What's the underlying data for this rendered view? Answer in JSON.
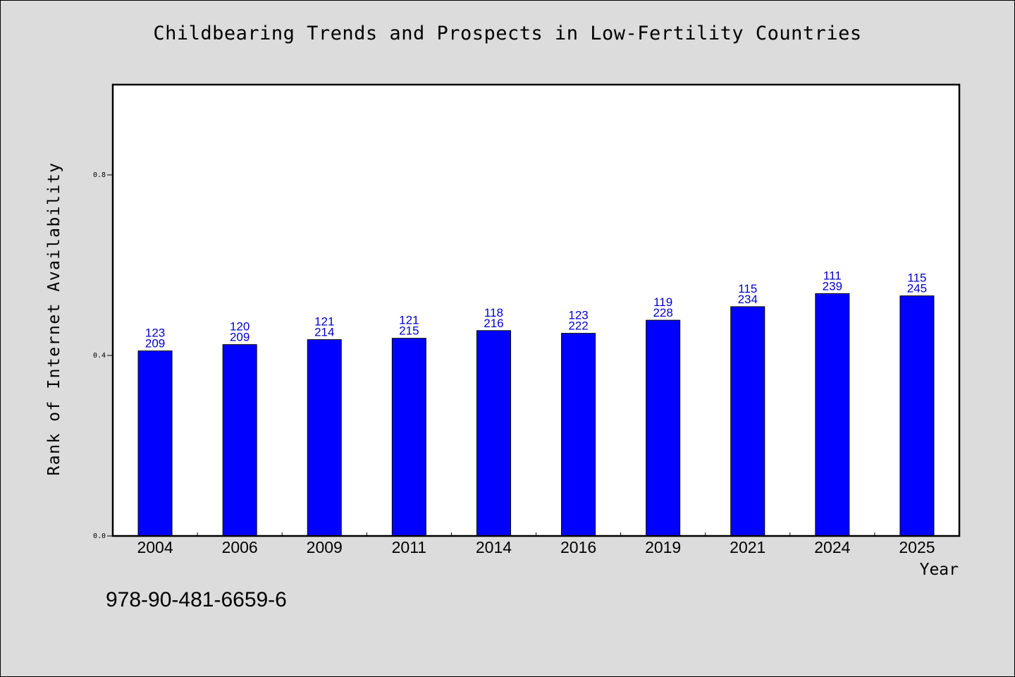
{
  "header": {
    "title": "Childbearing Trends and Prospects in Low-Fertility Countries"
  },
  "footer": {
    "isbn": "978-90-481-6659-6"
  },
  "chart_data": {
    "type": "bar",
    "title": "Childbearing Trends and Prospects in Low-Fertility Countries",
    "xlabel": "Year",
    "ylabel": "Rank of Internet Availability",
    "categories": [
      "2004",
      "2006",
      "2009",
      "2011",
      "2014",
      "2016",
      "2019",
      "2021",
      "2024",
      "2025"
    ],
    "values": [
      0.41,
      0.424,
      0.435,
      0.438,
      0.455,
      0.449,
      0.478,
      0.508,
      0.537,
      0.532
    ],
    "labels_top": [
      "123",
      "120",
      "121",
      "121",
      "118",
      "123",
      "119",
      "115",
      "111",
      "115"
    ],
    "labels_bottom": [
      "209",
      "209",
      "214",
      "215",
      "216",
      "222",
      "228",
      "234",
      "239",
      "245"
    ],
    "ylim": [
      0,
      1.0
    ],
    "yticks": [
      0.0,
      0.4,
      0.8
    ],
    "ytick_labels": [
      "0.0",
      "0.4",
      "0.8"
    ],
    "grid": false,
    "legend": "none",
    "bar_color": "#0000ff",
    "label_color": "#0000cc"
  }
}
